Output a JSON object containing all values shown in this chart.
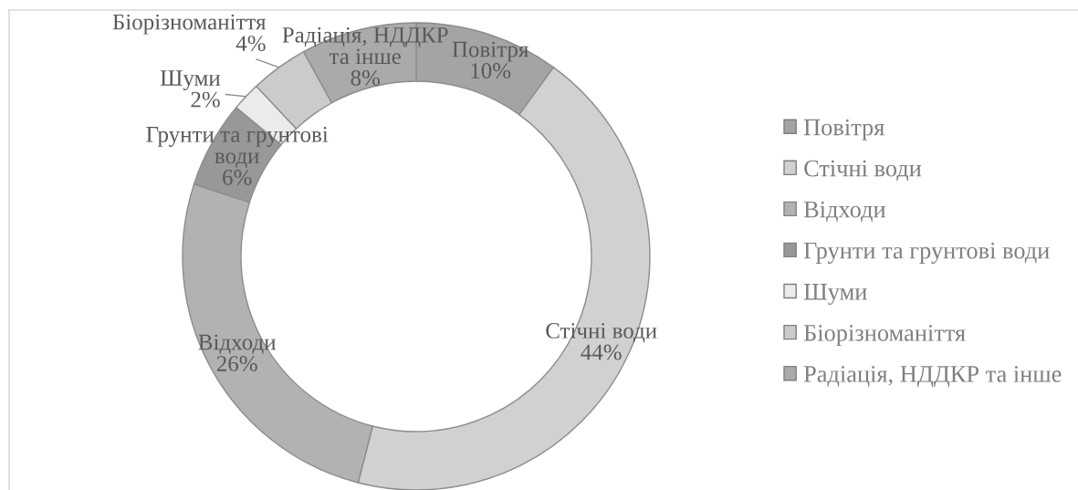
{
  "chart_data": {
    "type": "donut",
    "categories": [
      "Повітря",
      "Стічні води",
      "Відходи",
      "Грунти та грунтові води",
      "Шуми",
      "Біорізноманіття",
      "Радіація, НДДКР та інше"
    ],
    "values": [
      10,
      44,
      26,
      6,
      2,
      4,
      8
    ],
    "value_labels": [
      "10%",
      "44%",
      "26%",
      "6%",
      "2%",
      "4%",
      "8%"
    ],
    "colors": [
      "#a4a4a4",
      "#d1d1d1",
      "#b2b2b2",
      "#989898",
      "#ebebeb",
      "#cbcbcb",
      "#aaaaaa"
    ],
    "legend": "right"
  }
}
